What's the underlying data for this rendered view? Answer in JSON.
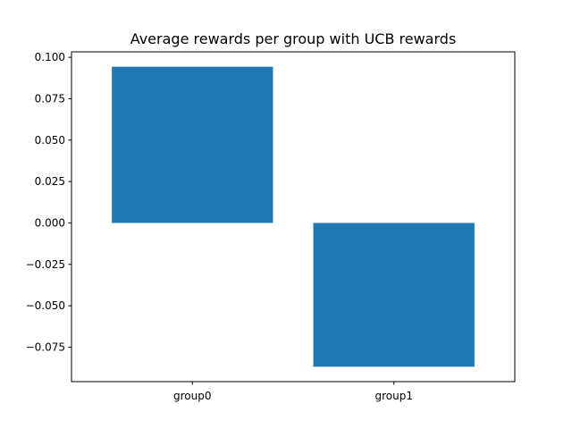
{
  "chart_data": {
    "type": "bar",
    "title": "Average rewards per group with UCB rewards",
    "xlabel": "",
    "ylabel": "",
    "categories": [
      "group0",
      "group1"
    ],
    "values": [
      0.0943,
      -0.0868
    ],
    "ylim": [
      -0.0958,
      0.1033
    ],
    "yticks": [
      0.1,
      0.075,
      0.05,
      0.025,
      0.0,
      -0.025,
      -0.05,
      -0.075
    ],
    "ytick_labels": [
      "0.100",
      "0.075",
      "0.050",
      "0.025",
      "0.000",
      "−0.025",
      "−0.050",
      "−0.075"
    ],
    "grid": false,
    "legend": "none",
    "bar_color": "#1f77b4"
  }
}
